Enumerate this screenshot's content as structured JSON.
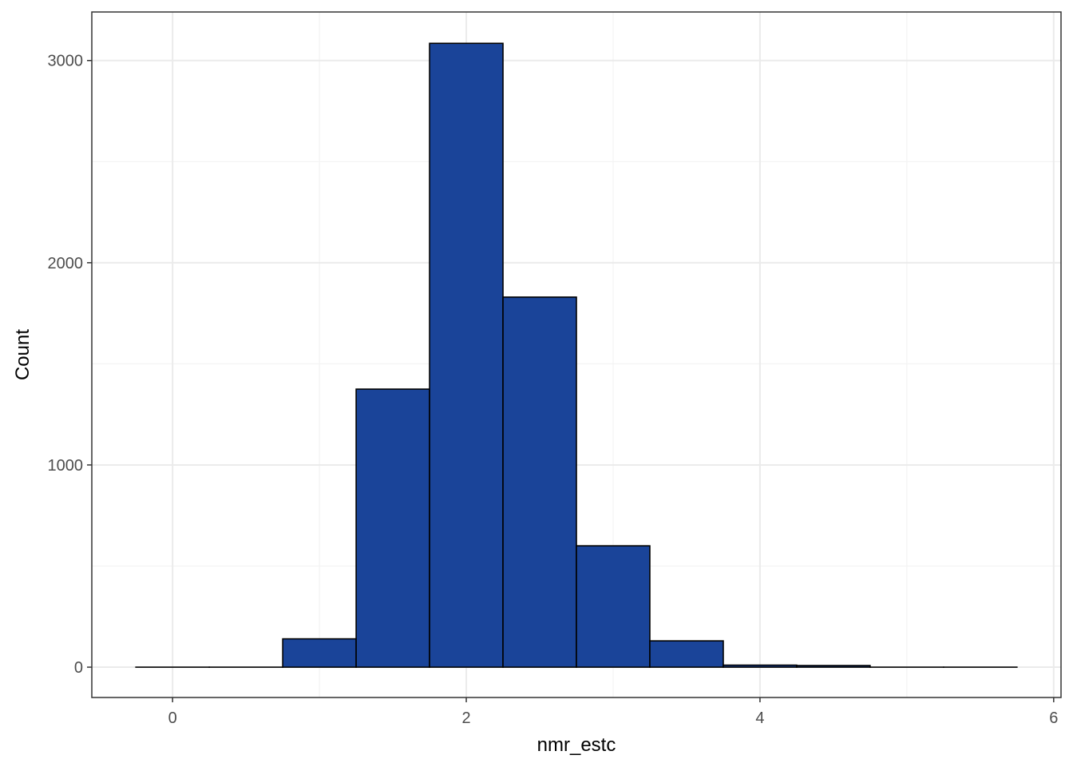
{
  "chart_data": {
    "type": "bar",
    "subtype": "histogram",
    "xlabel": "nmr_estc",
    "ylabel": "Count",
    "xlim": [
      -0.55,
      6.05
    ],
    "ylim": [
      -150,
      3240
    ],
    "x_ticks": [
      0,
      2,
      4,
      6
    ],
    "y_ticks": [
      0,
      1000,
      2000,
      3000
    ],
    "x_tick_labels": [
      "0",
      "2",
      "4",
      "6"
    ],
    "y_tick_labels": [
      "0",
      "1000",
      "2000",
      "3000"
    ],
    "grid": true,
    "bin_width": 0.5,
    "bins": [
      {
        "x0": -0.25,
        "x1": 0.25,
        "count": 0
      },
      {
        "x0": 0.25,
        "x1": 0.75,
        "count": 0
      },
      {
        "x0": 0.75,
        "x1": 1.25,
        "count": 140
      },
      {
        "x0": 1.25,
        "x1": 1.75,
        "count": 1375
      },
      {
        "x0": 1.75,
        "x1": 2.25,
        "count": 3085
      },
      {
        "x0": 2.25,
        "x1": 2.75,
        "count": 1830
      },
      {
        "x0": 2.75,
        "x1": 3.25,
        "count": 600
      },
      {
        "x0": 3.25,
        "x1": 3.75,
        "count": 130
      },
      {
        "x0": 3.75,
        "x1": 4.25,
        "count": 10
      },
      {
        "x0": 4.25,
        "x1": 4.75,
        "count": 8
      },
      {
        "x0": 4.75,
        "x1": 5.25,
        "count": 0
      },
      {
        "x0": 5.25,
        "x1": 5.75,
        "count": 0
      }
    ],
    "colors": {
      "fill": "#1a4499",
      "stroke": "#000000",
      "panel_border": "#333333"
    }
  }
}
